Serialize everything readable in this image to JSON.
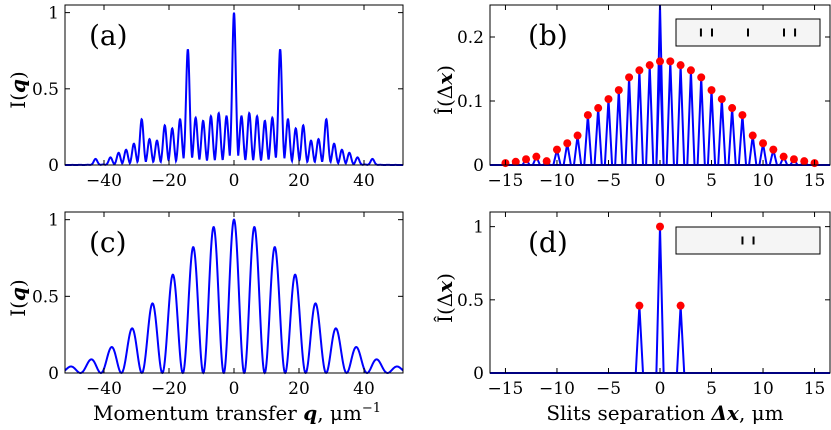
{
  "chart_data": [
    {
      "id": "a",
      "type": "line",
      "panel_label": "(a)",
      "ylabel": "I(q)",
      "xlabel": "",
      "xlim": [
        -52,
        52
      ],
      "ylim": [
        0,
        1.05
      ],
      "xticks": [
        -40,
        -20,
        0,
        20,
        40
      ],
      "yticks": [
        0,
        0.5,
        1
      ],
      "color": "#0000ff",
      "peaks": [
        {
          "x": 0,
          "y": 1.0
        },
        {
          "x": -14.2,
          "y": 0.76
        },
        {
          "x": 14.2,
          "y": 0.76
        },
        {
          "x": -28.4,
          "y": 0.3
        },
        {
          "x": 28.4,
          "y": 0.3
        },
        {
          "x": -2.3,
          "y": 0.32
        },
        {
          "x": 2.3,
          "y": 0.32
        },
        {
          "x": -4.7,
          "y": 0.34
        },
        {
          "x": 4.7,
          "y": 0.34
        },
        {
          "x": -7.1,
          "y": 0.32
        },
        {
          "x": 7.1,
          "y": 0.32
        },
        {
          "x": -9.5,
          "y": 0.29
        },
        {
          "x": 9.5,
          "y": 0.29
        },
        {
          "x": -11.8,
          "y": 0.31
        },
        {
          "x": 11.8,
          "y": 0.31
        },
        {
          "x": -16.6,
          "y": 0.3
        },
        {
          "x": 16.6,
          "y": 0.3
        },
        {
          "x": -19.0,
          "y": 0.24
        },
        {
          "x": 19.0,
          "y": 0.24
        },
        {
          "x": -21.3,
          "y": 0.26
        },
        {
          "x": 21.3,
          "y": 0.26
        },
        {
          "x": -23.7,
          "y": 0.16
        },
        {
          "x": 23.7,
          "y": 0.16
        },
        {
          "x": -26.0,
          "y": 0.17
        },
        {
          "x": 26.0,
          "y": 0.17
        },
        {
          "x": -30.8,
          "y": 0.14
        },
        {
          "x": 30.8,
          "y": 0.14
        },
        {
          "x": -33.2,
          "y": 0.1
        },
        {
          "x": 33.2,
          "y": 0.1
        },
        {
          "x": -35.5,
          "y": 0.08
        },
        {
          "x": 35.5,
          "y": 0.08
        },
        {
          "x": -38.0,
          "y": 0.05
        },
        {
          "x": 38.0,
          "y": 0.05
        },
        {
          "x": -42.6,
          "y": 0.04
        },
        {
          "x": 42.6,
          "y": 0.04
        }
      ]
    },
    {
      "id": "b",
      "type": "stem",
      "panel_label": "(b)",
      "ylabel": "Î(Δx)",
      "xlabel": "",
      "xlim": [
        -16.5,
        16.5
      ],
      "ylim": [
        0,
        0.25
      ],
      "xticks": [
        -15,
        -10,
        -5,
        0,
        5,
        10,
        15
      ],
      "yticks": [
        0,
        0.1,
        0.2
      ],
      "line_color": "#0000ff",
      "marker_color": "#ff0000",
      "center_peak": {
        "x": 0,
        "y": 0.27
      },
      "stems": [
        {
          "x": -15,
          "y": 0.003
        },
        {
          "x": -14,
          "y": 0.005
        },
        {
          "x": -13,
          "y": 0.009
        },
        {
          "x": -12,
          "y": 0.013
        },
        {
          "x": -11,
          "y": 0.006
        },
        {
          "x": -10,
          "y": 0.024
        },
        {
          "x": -9,
          "y": 0.034
        },
        {
          "x": -8,
          "y": 0.046
        },
        {
          "x": -7,
          "y": 0.078
        },
        {
          "x": -6,
          "y": 0.089
        },
        {
          "x": -5,
          "y": 0.103
        },
        {
          "x": -4,
          "y": 0.117
        },
        {
          "x": -3,
          "y": 0.137
        },
        {
          "x": -2,
          "y": 0.148
        },
        {
          "x": -1,
          "y": 0.156
        },
        {
          "x": 0,
          "y": 0.162
        },
        {
          "x": 1,
          "y": 0.162
        },
        {
          "x": 2,
          "y": 0.156
        },
        {
          "x": 3,
          "y": 0.148
        },
        {
          "x": 4,
          "y": 0.137
        },
        {
          "x": 5,
          "y": 0.117
        },
        {
          "x": 6,
          "y": 0.103
        },
        {
          "x": 7,
          "y": 0.089
        },
        {
          "x": 8,
          "y": 0.078
        },
        {
          "x": 9,
          "y": 0.046
        },
        {
          "x": 10,
          "y": 0.034
        },
        {
          "x": 11,
          "y": 0.024
        },
        {
          "x": 12,
          "y": 0.013
        },
        {
          "x": 13,
          "y": 0.009
        },
        {
          "x": 14,
          "y": 0.006
        },
        {
          "x": 15,
          "y": 0.003
        }
      ],
      "inset_slits": [
        -8.5,
        -6.5,
        0,
        6.5,
        8.5
      ]
    },
    {
      "id": "c",
      "type": "line",
      "panel_label": "(c)",
      "ylabel": "I(q)",
      "xlabel": "Momentum transfer q, μm⁻¹",
      "xlim": [
        -52,
        52
      ],
      "ylim": [
        0,
        1.05
      ],
      "xticks": [
        -40,
        -20,
        0,
        20,
        40
      ],
      "yticks": [
        0,
        0.5,
        1
      ],
      "color": "#0000ff",
      "fringe_period": 6.3,
      "envelope_sigma": 20
    },
    {
      "id": "d",
      "type": "stem",
      "panel_label": "(d)",
      "ylabel": "Î(Δx)",
      "xlabel": "Slits separation Δx, μm",
      "xlim": [
        -16.5,
        16.5
      ],
      "ylim": [
        0,
        1.1
      ],
      "xticks": [
        -15,
        -10,
        -5,
        0,
        5,
        10,
        15
      ],
      "yticks": [
        0,
        0.5,
        1
      ],
      "line_color": "#0000ff",
      "marker_color": "#ff0000",
      "stems": [
        {
          "x": -2,
          "y": 0.46
        },
        {
          "x": 0,
          "y": 1.0
        },
        {
          "x": 2,
          "y": 0.46
        }
      ],
      "inset_slits": [
        -1,
        1
      ]
    }
  ],
  "labels": {
    "xlabel_c_pre": "Momentum transfer ",
    "xlabel_c_bold": "q",
    "xlabel_c_post": ", μm",
    "xlabel_c_sup": "−1",
    "xlabel_d_pre": "Slits separation ",
    "xlabel_d_bold": "Δx",
    "xlabel_d_post": ", μm",
    "ylabel_I": "I(",
    "ylabel_I_bold": "q",
    "ylabel_I_close": ")",
    "ylabel_Ihat": "Î(Δ",
    "ylabel_Ihat_bold": "x",
    "ylabel_Ihat_close": ")"
  }
}
